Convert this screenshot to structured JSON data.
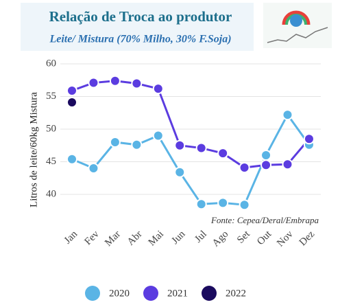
{
  "chart_data": {
    "type": "line",
    "title": "Relação de Troca ao produtor",
    "subtitle": "Leite/ Mistura (70% Milho, 30% F.Soja)",
    "ylabel": "Litros de leite/60kg Mistura",
    "annotation": "Fonte: Cepea/Deral/Embrapa",
    "categories": [
      "Jan",
      "Fev",
      "Mar",
      "Abr",
      "Mai",
      "Jun",
      "Jul",
      "Ago",
      "Set",
      "Out",
      "Nov",
      "Dez"
    ],
    "series": [
      {
        "name": "2020",
        "color": "#5ab4e5",
        "values": [
          45.4,
          44.0,
          48.0,
          47.6,
          49.0,
          43.4,
          38.5,
          38.7,
          38.4,
          46.0,
          52.2,
          47.6
        ]
      },
      {
        "name": "2021",
        "color": "#5b3ce0",
        "values": [
          55.9,
          57.1,
          57.4,
          57.0,
          56.2,
          47.5,
          47.1,
          46.3,
          44.1,
          44.5,
          44.6,
          48.5
        ]
      },
      {
        "name": "2022",
        "color": "#1a0a5e",
        "values": [
          54.1,
          null,
          null,
          null,
          null,
          null,
          null,
          null,
          null,
          null,
          null,
          null
        ]
      }
    ],
    "ylim": [
      36,
      60
    ],
    "yticks": [
      40,
      45,
      50,
      55,
      60
    ],
    "grid": true
  }
}
